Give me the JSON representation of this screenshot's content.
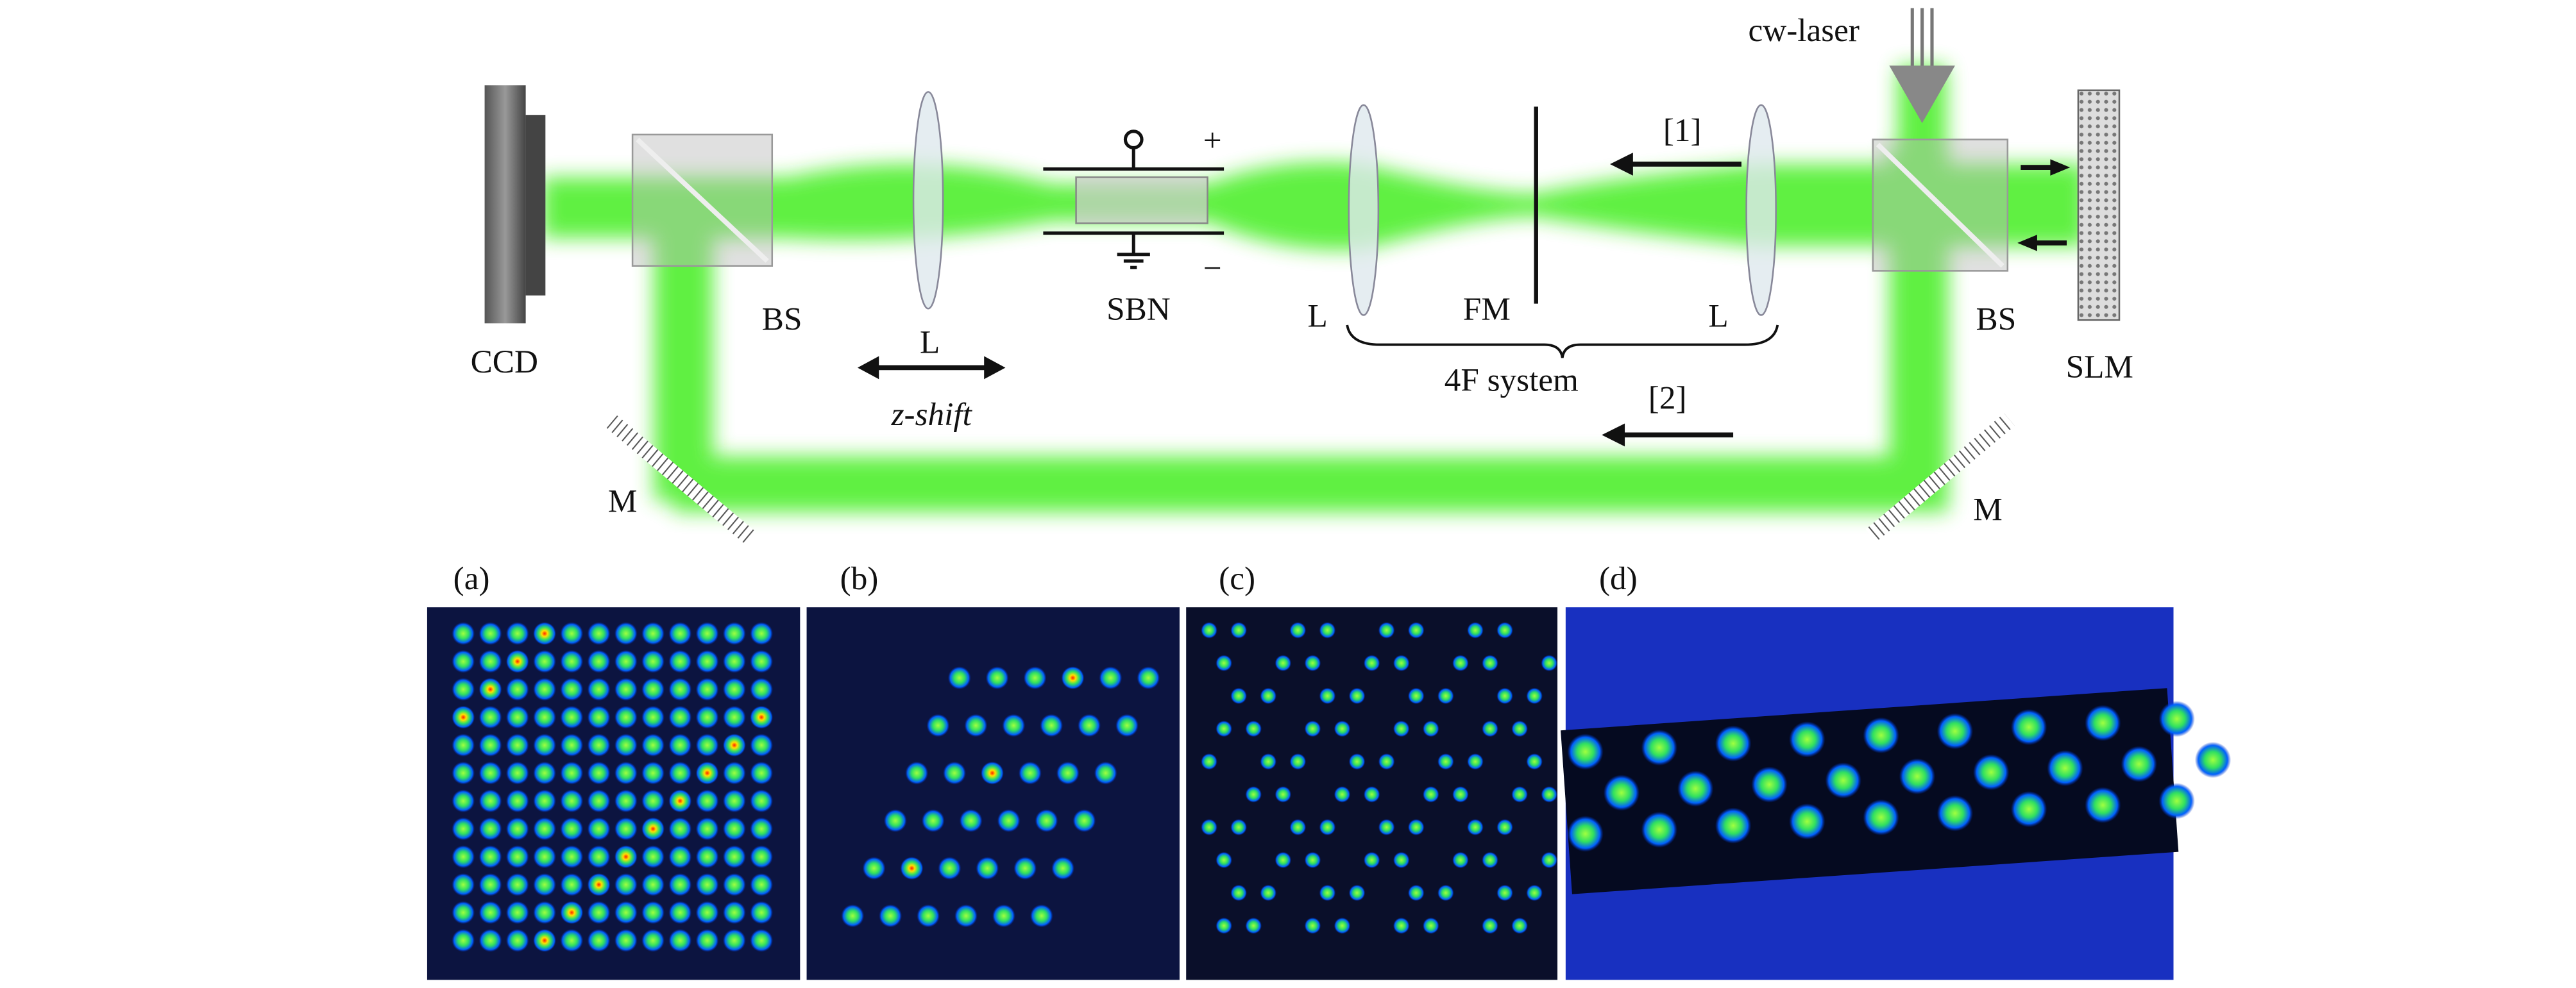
{
  "components": [
    {
      "label": "CCD"
    },
    {
      "label": "BS"
    },
    {
      "label": "L"
    },
    {
      "label": "SBN"
    },
    {
      "label": "L"
    },
    {
      "label": "FM"
    },
    {
      "label": "L"
    },
    {
      "label": "BS"
    },
    {
      "label": "SLM"
    },
    {
      "label": "M"
    },
    {
      "label": "M"
    }
  ],
  "annotations": {
    "laser": "cw-laser",
    "path1": "[1]",
    "path2": "[2]",
    "system": "4F system",
    "shift": "z-shift",
    "plus": "+",
    "minus": "−"
  },
  "panels": [
    {
      "label": "(a)"
    },
    {
      "label": "(b)"
    },
    {
      "label": "(c)"
    },
    {
      "label": "(d)"
    }
  ]
}
